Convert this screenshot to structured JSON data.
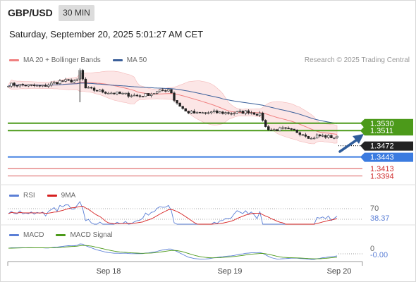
{
  "header": {
    "symbol": "GBP/USD",
    "interval": "30 MIN",
    "datetime": "Saturday, September 20, 2025 5:01:27 AM CET"
  },
  "main_panel": {
    "legend": [
      {
        "label": "MA 20 + Bollinger Bands",
        "color": "#f08080"
      },
      {
        "label": "MA 50",
        "color": "#3a5f9a"
      }
    ],
    "copyright": "Research © 2025 Trading Central",
    "arrow_color": "#2e5c9a"
  },
  "rsi_panel": {
    "legend": [
      {
        "label": "RSI",
        "color": "#5b7fd6"
      },
      {
        "label": "9MA",
        "color": "#d62020"
      }
    ]
  },
  "macd_panel": {
    "legend": [
      {
        "label": "MACD",
        "color": "#5b7fd6"
      },
      {
        "label": "MACD Signal",
        "color": "#4c9a1a"
      }
    ]
  },
  "chart_data": [
    {
      "type": "candlestick",
      "title": "",
      "ylim": [
        1.3375,
        1.3675
      ],
      "x_ticks": [
        "Sep 18",
        "Sep 19",
        "Sep 20"
      ],
      "series": [
        {
          "name": "MA 20 + Bollinger Bands",
          "color": "#f08080"
        },
        {
          "name": "MA 50",
          "color": "#3a5f9a"
        }
      ],
      "price_levels": [
        {
          "value": "1.3530",
          "color": "#4c9a1a",
          "style": "solid",
          "label_bg": "#4c9a1a"
        },
        {
          "value": "1.3511",
          "color": "#4c9a1a",
          "style": "solid",
          "label_bg": "#4c9a1a"
        },
        {
          "value": "1.3472",
          "color": "#222222",
          "style": "dotted",
          "label_bg": "#222222"
        },
        {
          "value": "1.3443",
          "color": "#3b7be0",
          "style": "solid",
          "label_bg": "#3b7be0"
        },
        {
          "value": "1.3413",
          "color": "#e07070",
          "style": "solid",
          "label_bg": "none"
        },
        {
          "value": "1.3394",
          "color": "#e07070",
          "style": "solid",
          "label_bg": "none"
        }
      ]
    },
    {
      "type": "line",
      "title": "RSI",
      "levels": [
        "70"
      ],
      "last_value": "38.37",
      "ylim": [
        20,
        80
      ]
    },
    {
      "type": "line",
      "title": "MACD",
      "levels": [
        "0"
      ],
      "last_value": "-0.00"
    }
  ]
}
